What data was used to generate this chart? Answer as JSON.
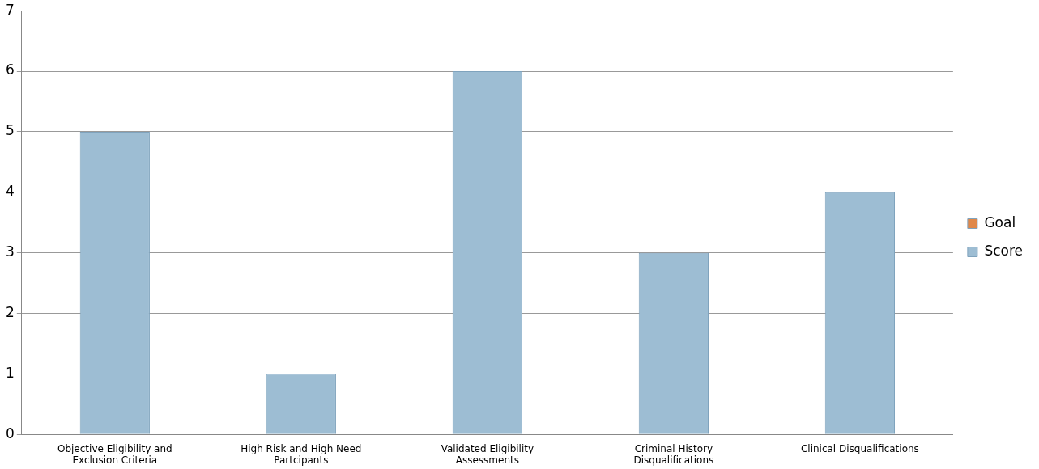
{
  "chart_data": {
    "type": "bar",
    "categories": [
      "Objective Eligibility and Exclusion Criteria",
      "High Risk and High Need Partcipants",
      "Validated Eligibility Assessments",
      "Criminal History Disqualifications",
      "Clinical Disqualifications"
    ],
    "series": [
      {
        "name": "Goal",
        "color": "#e0884a",
        "values": [
          null,
          null,
          null,
          null,
          null
        ]
      },
      {
        "name": "Score",
        "color": "#9dbdd3",
        "values": [
          5,
          1,
          6,
          3,
          4
        ]
      }
    ],
    "ylim": [
      0,
      7
    ],
    "yticks": [
      0,
      1,
      2,
      3,
      4,
      5,
      6,
      7
    ],
    "grid": "y",
    "legend": "right"
  }
}
